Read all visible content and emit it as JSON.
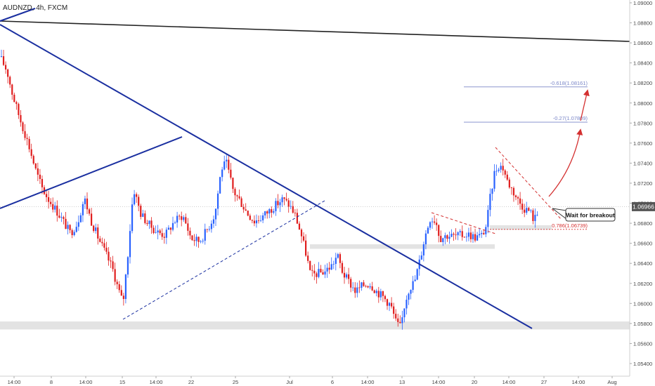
{
  "chart_data": {
    "type": "candlestick",
    "symbol_label": "AUDNZD, 4h, FXCM",
    "ylim": [
      1.0535,
      1.0905
    ],
    "y_ticks": [
      "1.09000",
      "1.08800",
      "1.08600",
      "1.08400",
      "1.08200",
      "1.08000",
      "1.07800",
      "1.07600",
      "1.07400",
      "1.07200",
      "1.07000",
      "1.06800",
      "1.06600",
      "1.06400",
      "1.06200",
      "1.06000",
      "1.05800",
      "1.05600",
      "1.05400"
    ],
    "x_ticks": [
      "14:00",
      "8",
      "14:00",
      "15",
      "14:00",
      "22",
      "25",
      "Jul",
      "6",
      "14:00",
      "13",
      "14:00",
      "20",
      "14:00",
      "27",
      "14:00",
      "Aug"
    ],
    "current_price": "1.06966",
    "fib_levels": [
      {
        "label": "-0.618(1.08161)",
        "value": 1.08161
      },
      {
        "label": "-0.27(1.07809)",
        "value": 1.07809
      },
      {
        "label": "0.786(1.06739)",
        "value": 1.06739
      }
    ],
    "callout_text": "Wait for breakout",
    "support_zones": [
      {
        "low": 1.0574,
        "high": 1.0582
      },
      {
        "low": 1.06545,
        "high": 1.0659
      },
      {
        "low": 1.06735,
        "high": 1.0678
      }
    ],
    "anchor_points": {
      "swing_low": 1.0582,
      "wedge_high": 1.0757,
      "recent_low": 1.0676
    },
    "colors": {
      "up": "#2962ff",
      "down": "#e01e1e",
      "trendline": "#1a2fa0",
      "resistance": "#222222",
      "fib": "#7a86c8",
      "fib_low": "#d43030",
      "zone": "#e3e3e3",
      "current": "#b0b0b0"
    }
  }
}
